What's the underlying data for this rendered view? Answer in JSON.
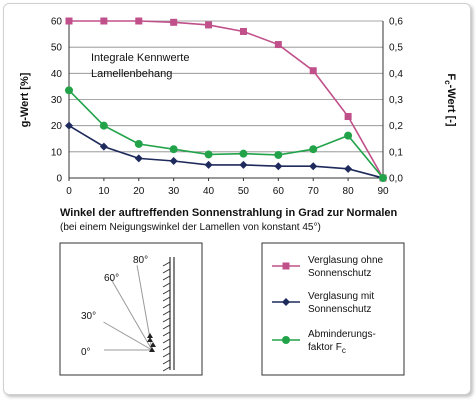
{
  "chart_data": {
    "type": "line",
    "title_lines": [
      "Integrale Kennwerte",
      "Lamellenbehang"
    ],
    "xlabel": "Winkel der auftreffenden Sonnenstrahlung  in Grad zur Normalen",
    "xlabel_note": "(bei einem Neigungswinkel der Lamellen von konstant 45°)",
    "ylabel_left": "g-Wert [%]",
    "ylabel_right_main": "F",
    "ylabel_right_sub": "c",
    "ylabel_right_rest": "-Wert [-]",
    "xlim": [
      0,
      90
    ],
    "ylim_left": [
      0,
      60
    ],
    "ylim_right": [
      0,
      0.6
    ],
    "x_ticks": [
      "0",
      "10",
      "20",
      "30",
      "40",
      "50",
      "60",
      "70",
      "80",
      "90"
    ],
    "y_left_ticks": [
      "0",
      "10",
      "20",
      "30",
      "40",
      "50",
      "60"
    ],
    "y_right_ticks": [
      "0,0",
      "0,1",
      "0,2",
      "0,3",
      "0,4",
      "0,5",
      "0,6"
    ],
    "grid": true,
    "x": [
      0,
      10,
      20,
      30,
      40,
      50,
      60,
      70,
      80,
      90
    ],
    "series": [
      {
        "name_lines": [
          "Verglasung ohne",
          "Sonnenschutz"
        ],
        "axis": "left",
        "color": "#c0508a",
        "marker": "square",
        "values": [
          60,
          60,
          60,
          59.5,
          58.5,
          56,
          51,
          41,
          23.5,
          0
        ]
      },
      {
        "name_lines": [
          "Verglasung mit",
          "Sonnenschutz"
        ],
        "axis": "left",
        "color": "#1f2a5c",
        "marker": "diamond",
        "values": [
          20,
          12,
          7.5,
          6.5,
          5,
          5,
          4.5,
          4.5,
          3.5,
          0
        ]
      },
      {
        "name_lines": [
          "Abminderungs-",
          "faktor F"
        ],
        "name_sub": "c",
        "axis": "right",
        "color": "#22a34a",
        "marker": "circle",
        "values": [
          0.335,
          0.2,
          0.13,
          0.11,
          0.09,
          0.093,
          0.088,
          0.11,
          0.162,
          0
        ]
      }
    ]
  },
  "diagram": {
    "angle_labels": [
      "80°",
      "60°",
      "30°",
      "0°"
    ]
  }
}
